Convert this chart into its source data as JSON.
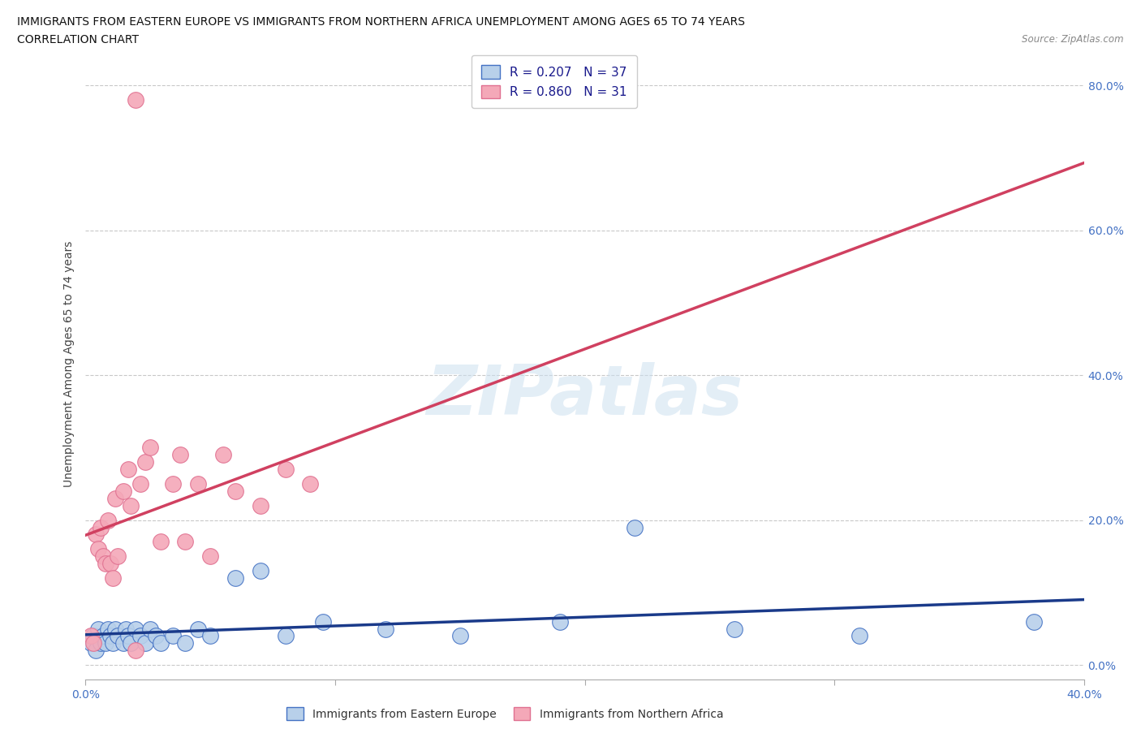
{
  "title_line1": "IMMIGRANTS FROM EASTERN EUROPE VS IMMIGRANTS FROM NORTHERN AFRICA UNEMPLOYMENT AMONG AGES 65 TO 74 YEARS",
  "title_line2": "CORRELATION CHART",
  "source": "Source: ZipAtlas.com",
  "ylabel": "Unemployment Among Ages 65 to 74 years",
  "watermark": "ZIPatlas",
  "color_eastern": "#b8d0ea",
  "color_northern": "#f4a8b8",
  "color_eastern_edge": "#4472c4",
  "color_northern_edge": "#e07090",
  "color_line_eastern": "#1a3a8a",
  "color_line_northern": "#d04060",
  "xlim": [
    0.0,
    0.4
  ],
  "ylim": [
    -0.02,
    0.85
  ],
  "eastern_europe_x": [
    0.002,
    0.003,
    0.004,
    0.005,
    0.006,
    0.007,
    0.008,
    0.009,
    0.01,
    0.011,
    0.012,
    0.013,
    0.015,
    0.016,
    0.017,
    0.018,
    0.02,
    0.022,
    0.024,
    0.026,
    0.028,
    0.03,
    0.035,
    0.04,
    0.045,
    0.05,
    0.06,
    0.07,
    0.08,
    0.095,
    0.12,
    0.15,
    0.19,
    0.22,
    0.26,
    0.31,
    0.38
  ],
  "eastern_europe_y": [
    0.03,
    0.04,
    0.02,
    0.05,
    0.03,
    0.04,
    0.03,
    0.05,
    0.04,
    0.03,
    0.05,
    0.04,
    0.03,
    0.05,
    0.04,
    0.03,
    0.05,
    0.04,
    0.03,
    0.05,
    0.04,
    0.03,
    0.04,
    0.03,
    0.05,
    0.04,
    0.12,
    0.13,
    0.04,
    0.06,
    0.05,
    0.04,
    0.06,
    0.19,
    0.05,
    0.04,
    0.06
  ],
  "northern_africa_x": [
    0.002,
    0.003,
    0.004,
    0.005,
    0.006,
    0.007,
    0.008,
    0.009,
    0.01,
    0.011,
    0.012,
    0.013,
    0.015,
    0.017,
    0.018,
    0.02,
    0.022,
    0.024,
    0.026,
    0.03,
    0.035,
    0.038,
    0.04,
    0.045,
    0.05,
    0.055,
    0.06,
    0.07,
    0.08,
    0.09,
    0.02
  ],
  "northern_africa_y": [
    0.04,
    0.03,
    0.18,
    0.16,
    0.19,
    0.15,
    0.14,
    0.2,
    0.14,
    0.12,
    0.23,
    0.15,
    0.24,
    0.27,
    0.22,
    0.02,
    0.25,
    0.28,
    0.3,
    0.17,
    0.25,
    0.29,
    0.17,
    0.25,
    0.15,
    0.29,
    0.24,
    0.22,
    0.27,
    0.25,
    0.78
  ]
}
